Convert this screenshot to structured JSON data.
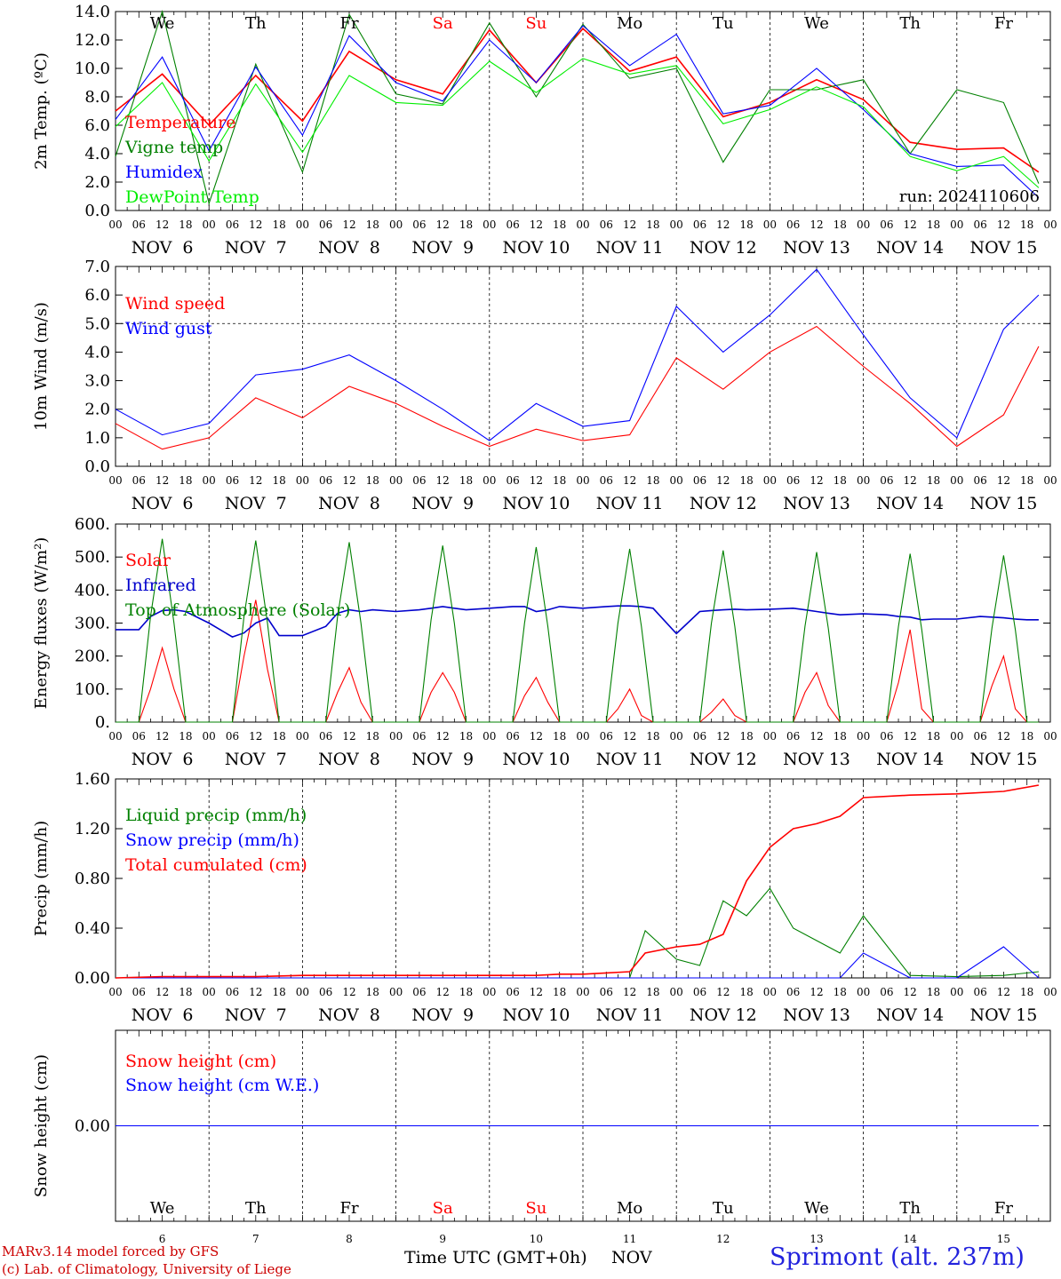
{
  "chart_data": [
    {
      "type": "line",
      "ylabel": "2m Temp. (ºC)",
      "ylim": [
        0,
        14
      ],
      "yticks": [
        "0.0",
        "2.0",
        "4.0",
        "6.0",
        "8.0",
        "10.0",
        "12.0",
        "14.0"
      ],
      "x_hours": [
        0,
        12,
        24,
        36,
        48,
        60,
        72,
        84,
        96,
        108,
        120,
        132,
        144,
        156,
        168,
        180,
        192,
        204,
        216,
        228,
        237
      ],
      "series": [
        {
          "name": "Temperature",
          "color": "#ff0000",
          "values": [
            7.0,
            9.6,
            6.0,
            9.5,
            6.3,
            11.2,
            9.2,
            8.2,
            12.7,
            9.0,
            12.8,
            9.8,
            10.8,
            6.6,
            7.6,
            9.2,
            7.8,
            4.8,
            4.3,
            4.4,
            2.7
          ]
        },
        {
          "name": "Vigne temp",
          "color": "#008000",
          "values": [
            3.8,
            14.0,
            0.5,
            10.3,
            2.7,
            13.8,
            8.2,
            7.5,
            13.2,
            8.0,
            13.1,
            9.3,
            10.0,
            3.4,
            8.5,
            8.5,
            9.2,
            4.0,
            8.5,
            7.6,
            1.9
          ]
        },
        {
          "name": "Humidex",
          "color": "#0000ff",
          "values": [
            6.4,
            10.8,
            4.2,
            10.1,
            5.3,
            12.3,
            9.0,
            7.7,
            12.0,
            9.0,
            13.0,
            10.2,
            12.4,
            6.8,
            7.4,
            10.0,
            7.1,
            4.0,
            3.1,
            3.2,
            0.9
          ]
        },
        {
          "name": "DewPoint Temp",
          "color": "#00ee00",
          "values": [
            5.9,
            9.0,
            3.5,
            8.9,
            4.1,
            9.5,
            7.6,
            7.4,
            10.5,
            8.3,
            10.7,
            9.6,
            10.2,
            6.1,
            7.1,
            8.7,
            7.3,
            3.8,
            2.8,
            3.8,
            1.6
          ]
        }
      ],
      "day_markers": [
        "We",
        "Th",
        "Fr",
        "Sa",
        "Su",
        "Mo",
        "Tu",
        "We",
        "Th",
        "Fr"
      ],
      "weekend_days": [
        "Sa",
        "Su"
      ],
      "annotation": "run: 2024110606"
    },
    {
      "type": "line",
      "ylabel": "10m Wind (m/s)",
      "ylim": [
        0,
        7
      ],
      "yticks": [
        "0.0",
        "1.0",
        "2.0",
        "3.0",
        "4.0",
        "5.0",
        "6.0",
        "7.0"
      ],
      "hline": 5.0,
      "x_hours": [
        0,
        12,
        24,
        36,
        48,
        60,
        72,
        84,
        96,
        108,
        120,
        132,
        144,
        156,
        168,
        180,
        192,
        204,
        216,
        228,
        237
      ],
      "series": [
        {
          "name": "Wind speed",
          "color": "#ff0000",
          "values": [
            1.5,
            0.6,
            1.0,
            2.4,
            1.7,
            2.8,
            2.2,
            1.4,
            0.7,
            1.3,
            0.9,
            1.1,
            3.8,
            2.7,
            4.0,
            4.9,
            3.5,
            2.2,
            0.7,
            1.8,
            4.2
          ]
        },
        {
          "name": "Wind gust",
          "color": "#0000ff",
          "values": [
            2.0,
            1.1,
            1.5,
            3.2,
            3.4,
            3.9,
            3.0,
            2.0,
            0.9,
            2.2,
            1.4,
            1.6,
            5.6,
            4.0,
            5.3,
            6.9,
            4.6,
            2.4,
            1.0,
            4.8,
            6.0
          ]
        }
      ]
    },
    {
      "type": "line",
      "ylabel": "Energy fluxes (W/m²)",
      "ylim": [
        0,
        600
      ],
      "yticks": [
        "0.",
        "100.",
        "200.",
        "300.",
        "400.",
        "500.",
        "600."
      ],
      "x_hours": [
        0,
        6,
        9,
        12,
        15,
        18,
        24,
        30,
        33,
        36,
        39,
        42,
        48,
        54,
        57,
        60,
        63,
        66,
        72,
        78,
        81,
        84,
        87,
        90,
        96,
        102,
        105,
        108,
        111,
        114,
        120,
        126,
        129,
        132,
        135,
        138,
        144,
        150,
        153,
        156,
        159,
        162,
        168,
        174,
        177,
        180,
        183,
        186,
        192,
        198,
        201,
        204,
        207,
        210,
        216,
        222,
        225,
        228,
        231,
        234,
        237
      ],
      "series": [
        {
          "name": "Solar",
          "color": "#ff0000",
          "values": [
            0,
            0,
            100,
            225,
            100,
            0,
            0,
            0,
            200,
            370,
            160,
            0,
            0,
            0,
            90,
            165,
            60,
            0,
            0,
            0,
            90,
            150,
            90,
            0,
            0,
            0,
            80,
            135,
            60,
            0,
            0,
            0,
            40,
            100,
            20,
            0,
            0,
            0,
            30,
            70,
            20,
            0,
            0,
            0,
            90,
            150,
            50,
            0,
            0,
            0,
            120,
            280,
            40,
            0,
            0,
            0,
            110,
            200,
            40,
            0,
            0
          ]
        },
        {
          "name": "Infrared",
          "color": "#0000cc",
          "values": [
            280,
            280,
            320,
            338,
            340,
            335,
            300,
            258,
            270,
            300,
            315,
            262,
            262,
            290,
            330,
            340,
            335,
            340,
            335,
            340,
            345,
            350,
            345,
            340,
            345,
            350,
            350,
            335,
            340,
            350,
            345,
            350,
            352,
            352,
            350,
            345,
            268,
            335,
            338,
            340,
            342,
            340,
            342,
            345,
            340,
            335,
            330,
            325,
            328,
            325,
            320,
            318,
            310,
            312,
            312,
            320,
            318,
            316,
            312,
            310,
            310
          ]
        },
        {
          "name": "Top of Atmosphere (Solar)",
          "color": "#008000",
          "values": [
            0,
            0,
            320,
            555,
            300,
            0,
            0,
            0,
            320,
            550,
            300,
            0,
            0,
            0,
            320,
            545,
            300,
            0,
            0,
            0,
            310,
            535,
            300,
            0,
            0,
            0,
            300,
            530,
            290,
            0,
            0,
            0,
            300,
            525,
            290,
            0,
            0,
            0,
            300,
            520,
            290,
            0,
            0,
            0,
            290,
            515,
            285,
            0,
            0,
            0,
            290,
            510,
            280,
            0,
            0,
            0,
            285,
            505,
            280,
            0,
            0
          ]
        }
      ]
    },
    {
      "type": "line",
      "ylabel": "Precip (mm/h)",
      "ylim": [
        0,
        1.6
      ],
      "yticks": [
        "0.00",
        "0.40",
        "0.80",
        "1.20",
        "1.60"
      ],
      "x_hours": [
        0,
        12,
        24,
        36,
        48,
        60,
        72,
        84,
        96,
        108,
        114,
        120,
        126,
        132,
        136,
        144,
        150,
        156,
        162,
        168,
        174,
        180,
        186,
        192,
        204,
        216,
        228,
        237
      ],
      "series": [
        {
          "name": "Liquid precip (mm/h)",
          "color": "#008000",
          "values": [
            0,
            0,
            0,
            0,
            0,
            0,
            0,
            0,
            0,
            0,
            0,
            0,
            0,
            0,
            0.38,
            0.15,
            0.1,
            0.62,
            0.5,
            0.72,
            0.4,
            0.3,
            0.2,
            0.5,
            0.02,
            0.01,
            0.02,
            0.05
          ]
        },
        {
          "name": "Snow precip (mm/h)",
          "color": "#0000ff",
          "values": [
            0,
            0,
            0,
            0,
            0,
            0,
            0,
            0,
            0,
            0,
            0,
            0,
            0,
            0,
            0,
            0,
            0,
            0,
            0,
            0,
            0,
            0,
            0,
            0.2,
            0,
            0,
            0.25,
            0
          ]
        },
        {
          "name": "Total cumulated (cm)",
          "color": "#ff0000",
          "values": [
            0.0,
            0.01,
            0.01,
            0.01,
            0.02,
            0.02,
            0.02,
            0.02,
            0.02,
            0.02,
            0.03,
            0.03,
            0.04,
            0.05,
            0.2,
            0.25,
            0.27,
            0.35,
            0.78,
            1.05,
            1.2,
            1.24,
            1.3,
            1.45,
            1.47,
            1.48,
            1.5,
            1.55
          ]
        }
      ]
    },
    {
      "type": "line",
      "ylabel": "Snow height (cm)",
      "ylim": [
        -1,
        1
      ],
      "yticks": [
        "0.00"
      ],
      "x_hours": [
        0,
        237
      ],
      "series": [
        {
          "name": "Snow height (cm)",
          "color": "#ff0000",
          "values": [
            0,
            0
          ]
        },
        {
          "name": "Snow height (cm W.E.)",
          "color": "#0000ff",
          "values": [
            0,
            0
          ]
        }
      ],
      "day_markers": [
        "We",
        "Th",
        "Fr",
        "Sa",
        "Su",
        "Mo",
        "Tu",
        "We",
        "Th",
        "Fr"
      ],
      "day_numbers": [
        "6",
        "7",
        "8",
        "9",
        "10",
        "11",
        "12",
        "13",
        "14",
        "15"
      ],
      "weekend_days": [
        "Sa",
        "Su"
      ]
    }
  ],
  "date_labels": [
    "NOV  6",
    "NOV  7",
    "NOV  8",
    "NOV  9",
    "NOV 10",
    "NOV 11",
    "NOV 12",
    "NOV 13",
    "NOV 14",
    "NOV 15"
  ],
  "hour_labels": [
    "00",
    "06",
    "12",
    "18"
  ],
  "footer": {
    "model": "MARv3.14 model forced by GFS",
    "lab": "(c) Lab. of Climatology, University of Liege",
    "xlabel": "Time UTC (GMT+0h)",
    "month": "NOV",
    "location": "Sprimont (alt. 237m)"
  },
  "colors": {
    "weekend": "#ff0000",
    "location": "#2222dd",
    "credit": "#cc0000"
  }
}
